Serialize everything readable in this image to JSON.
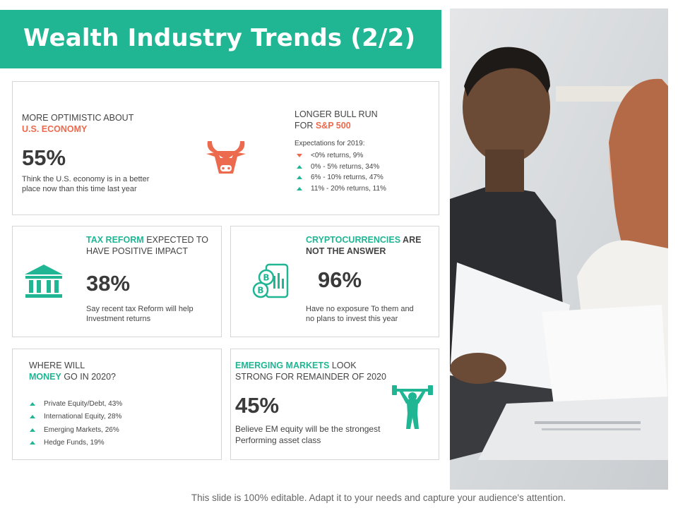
{
  "title": "Wealth Industry Trends (2/2)",
  "card1": {
    "left": {
      "heading_line1": "MORE OPTIMISTIC  ABOUT",
      "heading_highlight": "U.S. ECONOMY",
      "value": "55%",
      "note_line1": "Think the U.S. economy is in a better",
      "note_line2": "place now than this time last year"
    },
    "right": {
      "heading_line1": "LONGER BULL RUN",
      "heading_prefix": "FOR ",
      "heading_highlight": "S&P 500",
      "expectations_label": "Expectations for 2019:",
      "items": [
        {
          "label": "<0%  returns, 9%",
          "direction": "down"
        },
        {
          "label": "0% - 5% returns, 34%",
          "direction": "up"
        },
        {
          "label": "6% - 10% returns, 47%",
          "direction": "up"
        },
        {
          "label": "11% - 20% returns, 11%",
          "direction": "up"
        }
      ]
    },
    "icon": "bull-icon"
  },
  "card2": {
    "heading_highlight": "TAX REFORM",
    "heading_rest1": " EXPECTED TO",
    "heading_line2": "HAVE POSITIVE IMPACT",
    "value": "38%",
    "note_line1": "Say recent tax Reform will help",
    "note_line2": "Investment returns",
    "icon": "bank-icon"
  },
  "card3": {
    "heading_highlight": "CRYPTOCURRENCIES",
    "heading_rest1": " ARE",
    "heading_line2": "NOT THE ANSWER",
    "value": "96%",
    "note_line1": "Have no exposure To them and",
    "note_line2": "no plans to invest this year",
    "icon": "bitcoin-phone-icon"
  },
  "card4": {
    "heading_line1": "WHERE WILL",
    "heading_highlight": "MONEY",
    "heading_rest2": " GO IN 2020?",
    "items": [
      "Private Equity/Debt,  43%",
      "International Equity,  28%",
      "Emerging Markets, 26%",
      "Hedge Funds, 19%"
    ]
  },
  "card5": {
    "heading_highlight": "EMERGING MARKETS",
    "heading_rest1": " LOOK",
    "heading_line2": "STRONG FOR REMAINDER  OF 2020",
    "value": "45%",
    "note_line1": "Believe EM equity will be the strongest",
    "note_line2": "Performing  asset class",
    "icon": "weightlifter-icon"
  },
  "footer": "This slide is 100% editable. Adapt it to your needs and capture your audience's attention.",
  "colors": {
    "accent": "#20b593",
    "highlight": "#ec6a4d",
    "text": "#3a3a3a"
  }
}
